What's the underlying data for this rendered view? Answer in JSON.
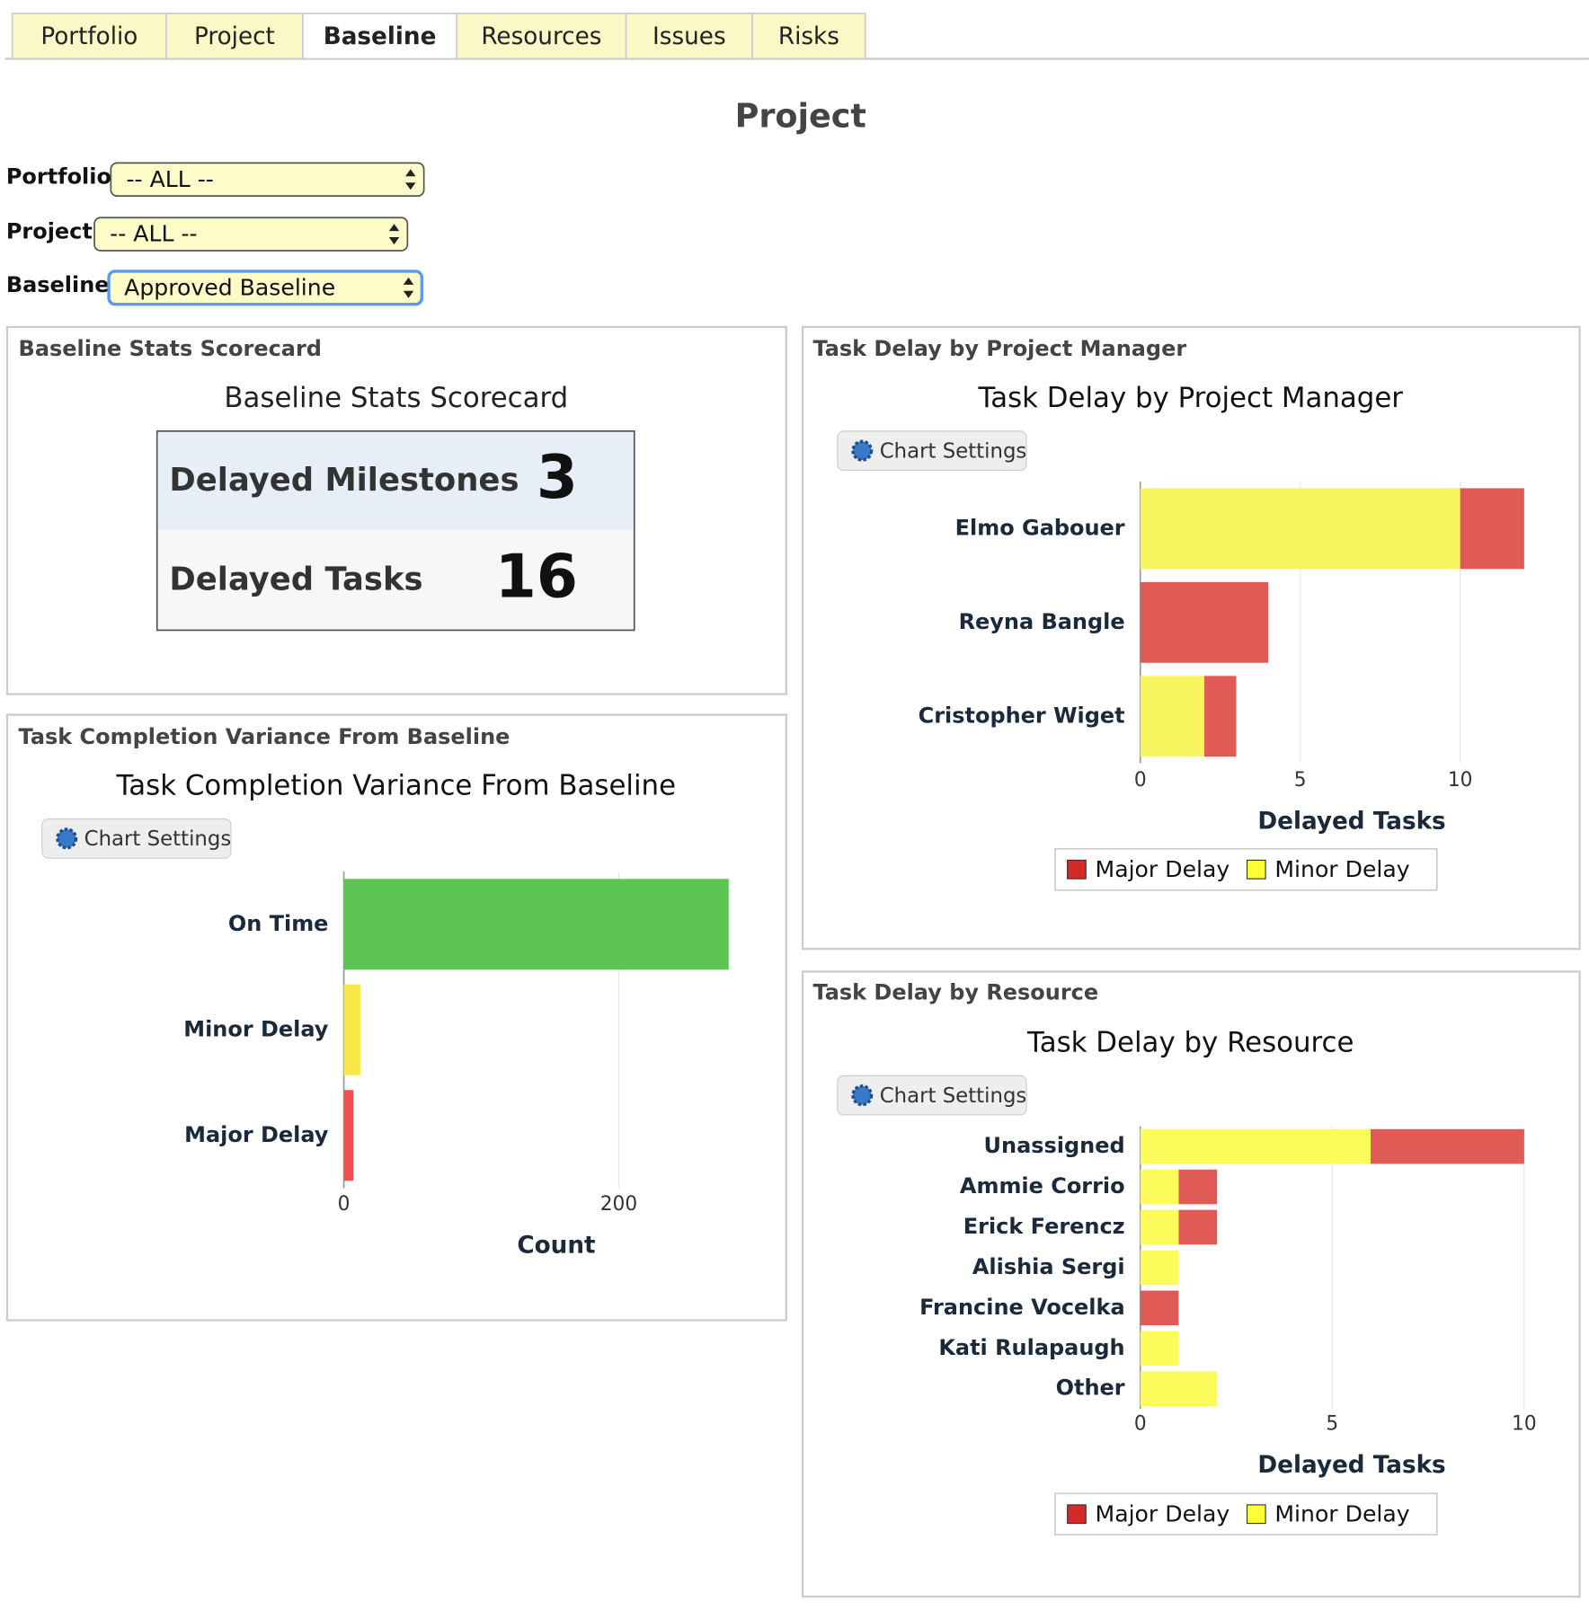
{
  "tabs": [
    "Portfolio",
    "Project",
    "Baseline",
    "Resources",
    "Issues",
    "Risks"
  ],
  "page_title": "Project",
  "filters": [
    {
      "label": "Portfolio",
      "value": "-- ALL --"
    },
    {
      "label": "Project",
      "value": "-- ALL --"
    },
    {
      "label": "Baseline",
      "value": "Approved Baseline"
    }
  ],
  "scorecard": {
    "panel_title": "Baseline Stats Scorecard",
    "title": "Baseline Stats Scorecard",
    "rows": [
      {
        "label": "Delayed Milestones",
        "value": 3
      },
      {
        "label": "Delayed Tasks",
        "value": 16
      }
    ]
  },
  "chart_data": [
    {
      "type": "barh",
      "panel_title": "Task Completion Variance From Baseline",
      "title": "Task Completion Variance From Baseline",
      "settings_button": "Chart Settings",
      "categories": [
        "On Time",
        "Minor Delay",
        "Major Delay"
      ],
      "values": [
        280,
        12,
        7
      ],
      "colors": [
        "#5cc552",
        "#f8e84a",
        "#f05050"
      ],
      "x_label": "Count",
      "xlim": [
        0,
        280
      ],
      "xticks": [
        0,
        200
      ],
      "grid": true,
      "legend": false
    },
    {
      "type": "barh",
      "stacked": true,
      "panel_title": "Task Delay by Project Manager",
      "title": "Task Delay by Project Manager",
      "settings_button": "Chart Settings",
      "categories": [
        "Elmo Gabouer",
        "Reyna Bangle",
        "Cristopher Wiget"
      ],
      "series": [
        {
          "name": "Major Delay",
          "color": "#e05a56",
          "values": [
            2,
            4,
            1
          ]
        },
        {
          "name": "Minor Delay",
          "color": "#f7f55f",
          "values": [
            10,
            0,
            2
          ]
        }
      ],
      "x_label": "Delayed Tasks",
      "xlim": [
        0,
        12
      ],
      "xticks": [
        0,
        5,
        10
      ],
      "grid": true,
      "legend": true
    },
    {
      "type": "barh",
      "stacked": true,
      "panel_title": "Task Delay by Resource",
      "title": "Task Delay by Resource",
      "settings_button": "Chart Settings",
      "categories": [
        "Unassigned",
        "Ammie Corrio",
        "Erick Ferencz",
        "Alishia Sergi",
        "Francine Vocelka",
        "Kati Rulapaugh",
        "Other"
      ],
      "series": [
        {
          "name": "Major Delay",
          "color": "#e05a56",
          "values": [
            4,
            1,
            1,
            0,
            1,
            0,
            0
          ]
        },
        {
          "name": "Minor Delay",
          "color": "#fbfb5a",
          "values": [
            6,
            1,
            1,
            1,
            0,
            1,
            2
          ]
        }
      ],
      "x_label": "Delayed Tasks",
      "xlim": [
        0,
        10
      ],
      "xticks": [
        0,
        5,
        10
      ],
      "grid": true,
      "legend": true
    }
  ]
}
